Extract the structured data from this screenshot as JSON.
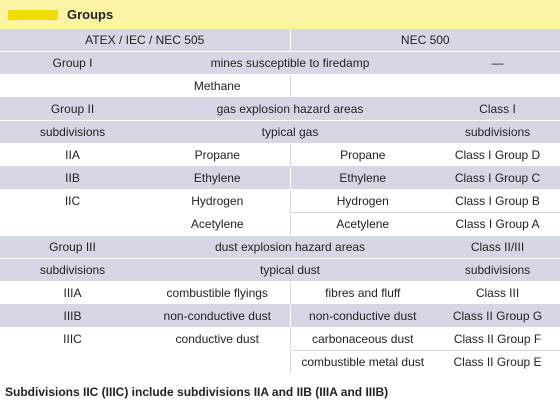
{
  "header": {
    "title": "Groups",
    "swatch_color": "#f2dd00"
  },
  "columns": {
    "left": "ATEX / IEC / NEC 505",
    "right": "NEC 500"
  },
  "group1": {
    "name": "Group I",
    "desc": "mines susceptible to firedamp",
    "nec": "—",
    "gas": "Methane"
  },
  "group2": {
    "name": "Group II",
    "desc": "gas explosion hazard areas",
    "nec_class": "Class I",
    "sub_label": "subdivisions",
    "typical": "typical gas",
    "nec_sub": "subdivisions",
    "rows": [
      {
        "sub": "IIA",
        "iec": "Propane",
        "nec": "Propane",
        "cls": "Class I Group D"
      },
      {
        "sub": "IIB",
        "iec": "Ethylene",
        "nec": "Ethylene",
        "cls": "Class I Group C"
      },
      {
        "sub": "IIC",
        "iec": "Hydrogen",
        "nec": "Hydrogen",
        "cls": "Class I Group B"
      },
      {
        "iec": "Acetylene",
        "nec": "Acetylene",
        "cls": "Class I Group A"
      }
    ]
  },
  "group3": {
    "name": "Group III",
    "desc": "dust explosion hazard areas",
    "nec_class": "Class II/III",
    "sub_label": "subdivisions",
    "typical": "typical dust",
    "nec_sub": "subdivisions",
    "rows": [
      {
        "sub": "IIIA",
        "iec": "combustible flyings",
        "nec": "fibres and fluff",
        "cls": "Class III"
      },
      {
        "sub": "IIIB",
        "iec": "non-conductive dust",
        "nec": "non-conductive dust",
        "cls": "Class II Group G"
      },
      {
        "sub": "IIIC",
        "iec": "conductive dust",
        "nec": "carbonaceous dust",
        "cls": "Class II Group F"
      },
      {
        "nec": "combustible metal dust",
        "cls": "Class II Group E"
      }
    ]
  },
  "footnote": "Subdivisions IIC (IIIC) include subdivisions IIA and IIB (IIIA and IIIB)"
}
